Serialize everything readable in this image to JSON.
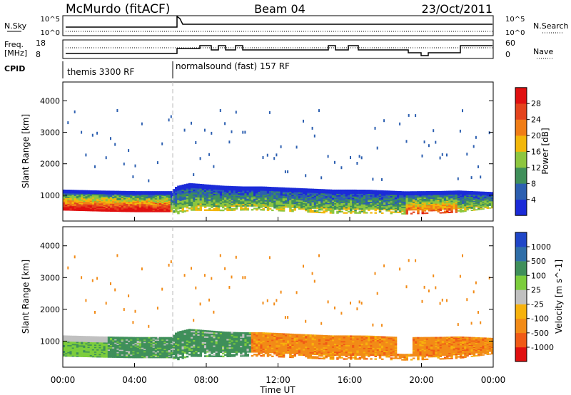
{
  "header": {
    "title": "McMurdo (fitACF)",
    "beam": "Beam 04",
    "date": "23/Oct/2011"
  },
  "strips": {
    "nsky_label": "N.Sky",
    "nsky_ticks": [
      "10^5",
      "10^0"
    ],
    "nsearch_label": "N.Search",
    "nsearch_ticks": [
      "10^5",
      "10^0"
    ],
    "freq_label": "Freq.",
    "freq_unit": "[MHz]",
    "freq_ticks": [
      "18",
      "8"
    ],
    "nave_label": "Nave",
    "nave_ticks": [
      "60",
      "0"
    ],
    "cpid_label": "CPID",
    "cpid_segments": [
      {
        "label": "themis 3300 RF",
        "start_hour": 0
      },
      {
        "label": "normalsound (fast) 157 RF",
        "start_hour": 6.1
      }
    ]
  },
  "chart_data": [
    {
      "type": "heatmap",
      "name": "power",
      "ylabel": "Slant Range [km]",
      "xlim_hours": [
        0,
        24
      ],
      "ylim_km": [
        180,
        4600
      ],
      "yticks": [
        1000,
        2000,
        3000,
        4000
      ],
      "colorbar_label": "Power [dB]",
      "colorbar_ticks": [
        "4",
        "8",
        "12",
        "16",
        "20",
        "24",
        "28"
      ],
      "colorbar_range": [
        0,
        32
      ],
      "colorbar_colors": [
        "#1b2bd8",
        "#2c5fb0",
        "#3f8f5a",
        "#8dc63f",
        "#f2b70a",
        "#f07d16",
        "#e4431c",
        "#e01010"
      ],
      "band_center_km": [
        [
          0,
          850
        ],
        [
          2,
          820
        ],
        [
          4,
          800
        ],
        [
          6,
          800
        ],
        [
          7,
          950
        ],
        [
          9,
          900
        ],
        [
          11,
          900
        ],
        [
          13,
          850
        ],
        [
          15,
          800
        ],
        [
          17,
          800
        ],
        [
          19,
          760
        ],
        [
          21,
          780
        ],
        [
          22,
          800
        ],
        [
          24,
          850
        ]
      ],
      "band_halfwidth_km": [
        [
          0,
          330
        ],
        [
          6,
          330
        ],
        [
          6.3,
          450
        ],
        [
          10,
          380
        ],
        [
          16,
          380
        ],
        [
          22,
          350
        ],
        [
          24,
          250
        ]
      ]
    },
    {
      "type": "heatmap",
      "name": "velocity",
      "xlabel": "Time UT",
      "ylabel": "Slant Range [km]",
      "xticks": [
        "00:00",
        "04:00",
        "08:00",
        "12:00",
        "16:00",
        "20:00",
        "00:00"
      ],
      "xlim_hours": [
        0,
        24
      ],
      "ylim_km": [
        180,
        4600
      ],
      "yticks": [
        1000,
        2000,
        3000,
        4000
      ],
      "colorbar_label": "Velocity [m s^-1]",
      "colorbar_ticks": [
        "1000",
        "500",
        "100",
        "25",
        "-25",
        "-100",
        "-500",
        "-1000"
      ],
      "colorbar_colors": [
        "#1f46c8",
        "#2f6ea8",
        "#3f8f5a",
        "#7ccd3c",
        "#c0c0c0",
        "#f7b20d",
        "#f28b17",
        "#f05a16",
        "#e01010"
      ]
    }
  ]
}
